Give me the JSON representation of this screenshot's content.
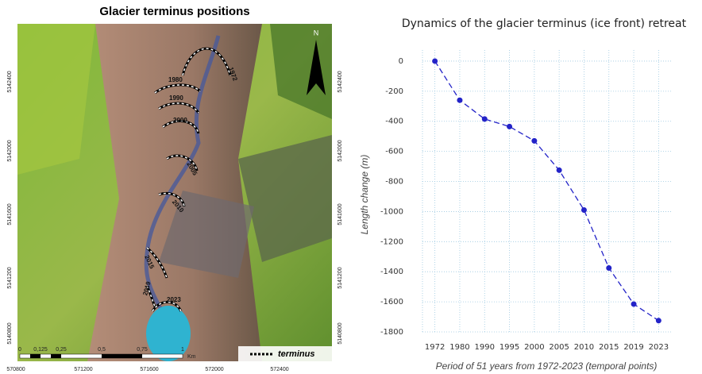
{
  "map": {
    "title": "Glacier terminus positions",
    "y_ticks": [
      5142400,
      5142000,
      5141600,
      5141200,
      5140800
    ],
    "x_ticks": [
      570800,
      571200,
      571600,
      572000,
      572400
    ],
    "years": [
      "1972",
      "1980",
      "1990",
      "2000",
      "2005",
      "2010",
      "2015",
      "2019",
      "2023"
    ],
    "scale": [
      "0",
      "0,125",
      "0,25",
      "0,5",
      "0,75",
      "1",
      "Km"
    ],
    "legend": "terminus",
    "north": "N"
  },
  "chart_data": {
    "type": "line",
    "title": "Dynamics of the glacier terminus (ice front) retreat",
    "x_label": "Period of 51 years from 1972-2023 (temporal points)",
    "y_label": "Length change (m)",
    "categories": [
      "1972",
      "1980",
      "1990",
      "1995",
      "2000",
      "2005",
      "2010",
      "2015",
      "2019",
      "2023"
    ],
    "values": [
      0,
      -260,
      -385,
      -435,
      -530,
      -725,
      -990,
      -1375,
      -1615,
      -1725
    ],
    "color": "#2323c8",
    "ylim": [
      -1800,
      100
    ],
    "yticks": [
      0,
      -200,
      -400,
      -600,
      -800,
      -1000,
      -1200,
      -1400,
      -1600,
      -1800
    ],
    "grid": true
  }
}
